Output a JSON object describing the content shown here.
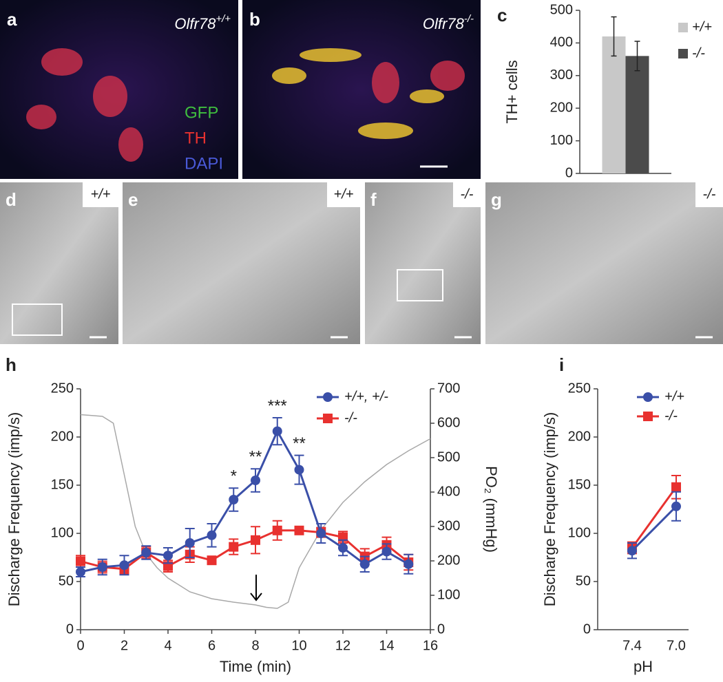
{
  "images": [
    {
      "letter": "a",
      "genotype": "Olfr78",
      "superscript": "+/+",
      "legend": [
        "GFP",
        "TH",
        "DAPI"
      ]
    },
    {
      "letter": "b",
      "genotype": "Olfr78",
      "superscript": "-/-"
    },
    {
      "letter": "d",
      "label": "+/+"
    },
    {
      "letter": "e",
      "label": "+/+"
    },
    {
      "letter": "f",
      "label": "-/-"
    },
    {
      "letter": "g",
      "label": "-/-"
    }
  ],
  "chart_letters": [
    "c",
    "h",
    "i"
  ],
  "chart_data": [
    {
      "type": "bar",
      "ylabel": "TH+ cells",
      "categories": [
        null
      ],
      "series": [
        {
          "name": "+/+",
          "color": "#c8c8c8",
          "values": [
            420
          ],
          "errors": [
            60
          ]
        },
        {
          "name": "-/-",
          "color": "#4b4b4b",
          "values": [
            360
          ],
          "errors": [
            45
          ]
        }
      ],
      "ylim": [
        0,
        500
      ],
      "yticks": [
        0,
        100,
        200,
        300,
        400,
        500
      ]
    },
    {
      "type": "line",
      "xlabel": "Time (min)",
      "ylabel": "Discharge Frequency (imp/s)",
      "y2label": "PO₂ (mmHg)",
      "x": [
        0,
        1,
        2,
        3,
        4,
        5,
        6,
        7,
        8,
        9,
        10,
        11,
        12,
        13,
        14,
        15
      ],
      "xlim": [
        0,
        16
      ],
      "xticks": [
        0,
        2,
        4,
        6,
        8,
        10,
        12,
        14,
        16
      ],
      "ylim": [
        0,
        250
      ],
      "yticks": [
        0,
        50,
        100,
        150,
        200,
        250
      ],
      "y2lim": [
        0,
        700
      ],
      "y2ticks": [
        0,
        100,
        200,
        300,
        400,
        500,
        600,
        700
      ],
      "series": [
        {
          "name": "+/+,  +/-",
          "color": "#3a4fa8",
          "marker": "circle",
          "values": [
            60,
            65,
            67,
            80,
            77,
            90,
            98,
            135,
            155,
            206,
            166,
            100,
            85,
            68,
            81,
            68
          ],
          "errors": [
            5,
            8,
            10,
            7,
            8,
            15,
            12,
            12,
            12,
            14,
            15,
            10,
            8,
            8,
            8,
            10
          ]
        },
        {
          "name": "-/-",
          "color": "#e8312f",
          "marker": "square",
          "values": [
            71,
            65,
            63,
            80,
            66,
            78,
            72,
            86,
            93,
            103,
            103,
            101,
            96,
            76,
            88,
            70
          ],
          "errors": [
            6,
            6,
            5,
            6,
            6,
            8,
            4,
            8,
            14,
            10,
            4,
            5,
            6,
            8,
            8,
            8
          ]
        }
      ],
      "trace": {
        "axis": "y2",
        "color": "#a8a8a8",
        "x": [
          0,
          1,
          1.5,
          2,
          2.5,
          3,
          3.5,
          4,
          5,
          6,
          7,
          8,
          8.5,
          9,
          9.5,
          10,
          11,
          12,
          13,
          14,
          15,
          16
        ],
        "values": [
          625,
          620,
          600,
          450,
          300,
          220,
          180,
          150,
          110,
          90,
          80,
          72,
          65,
          62,
          80,
          180,
          290,
          370,
          430,
          480,
          520,
          555
        ]
      },
      "annotations": [
        {
          "x": 7,
          "text": "*"
        },
        {
          "x": 8,
          "text": "**"
        },
        {
          "x": 9,
          "text": "***"
        },
        {
          "x": 10,
          "text": "**"
        }
      ]
    },
    {
      "type": "line",
      "xlabel": "pH",
      "ylabel": "Discharge Frequency (imp/s)",
      "categories": [
        "7.4",
        "7.0"
      ],
      "ylim": [
        0,
        250
      ],
      "yticks": [
        0,
        50,
        100,
        150,
        200,
        250
      ],
      "series": [
        {
          "name": "+/+",
          "color": "#3a4fa8",
          "marker": "circle",
          "values": [
            82,
            128
          ],
          "errors": [
            8,
            15
          ]
        },
        {
          "name": "-/-",
          "color": "#e8312f",
          "marker": "square",
          "values": [
            85,
            148
          ],
          "errors": [
            6,
            12
          ]
        }
      ]
    }
  ]
}
